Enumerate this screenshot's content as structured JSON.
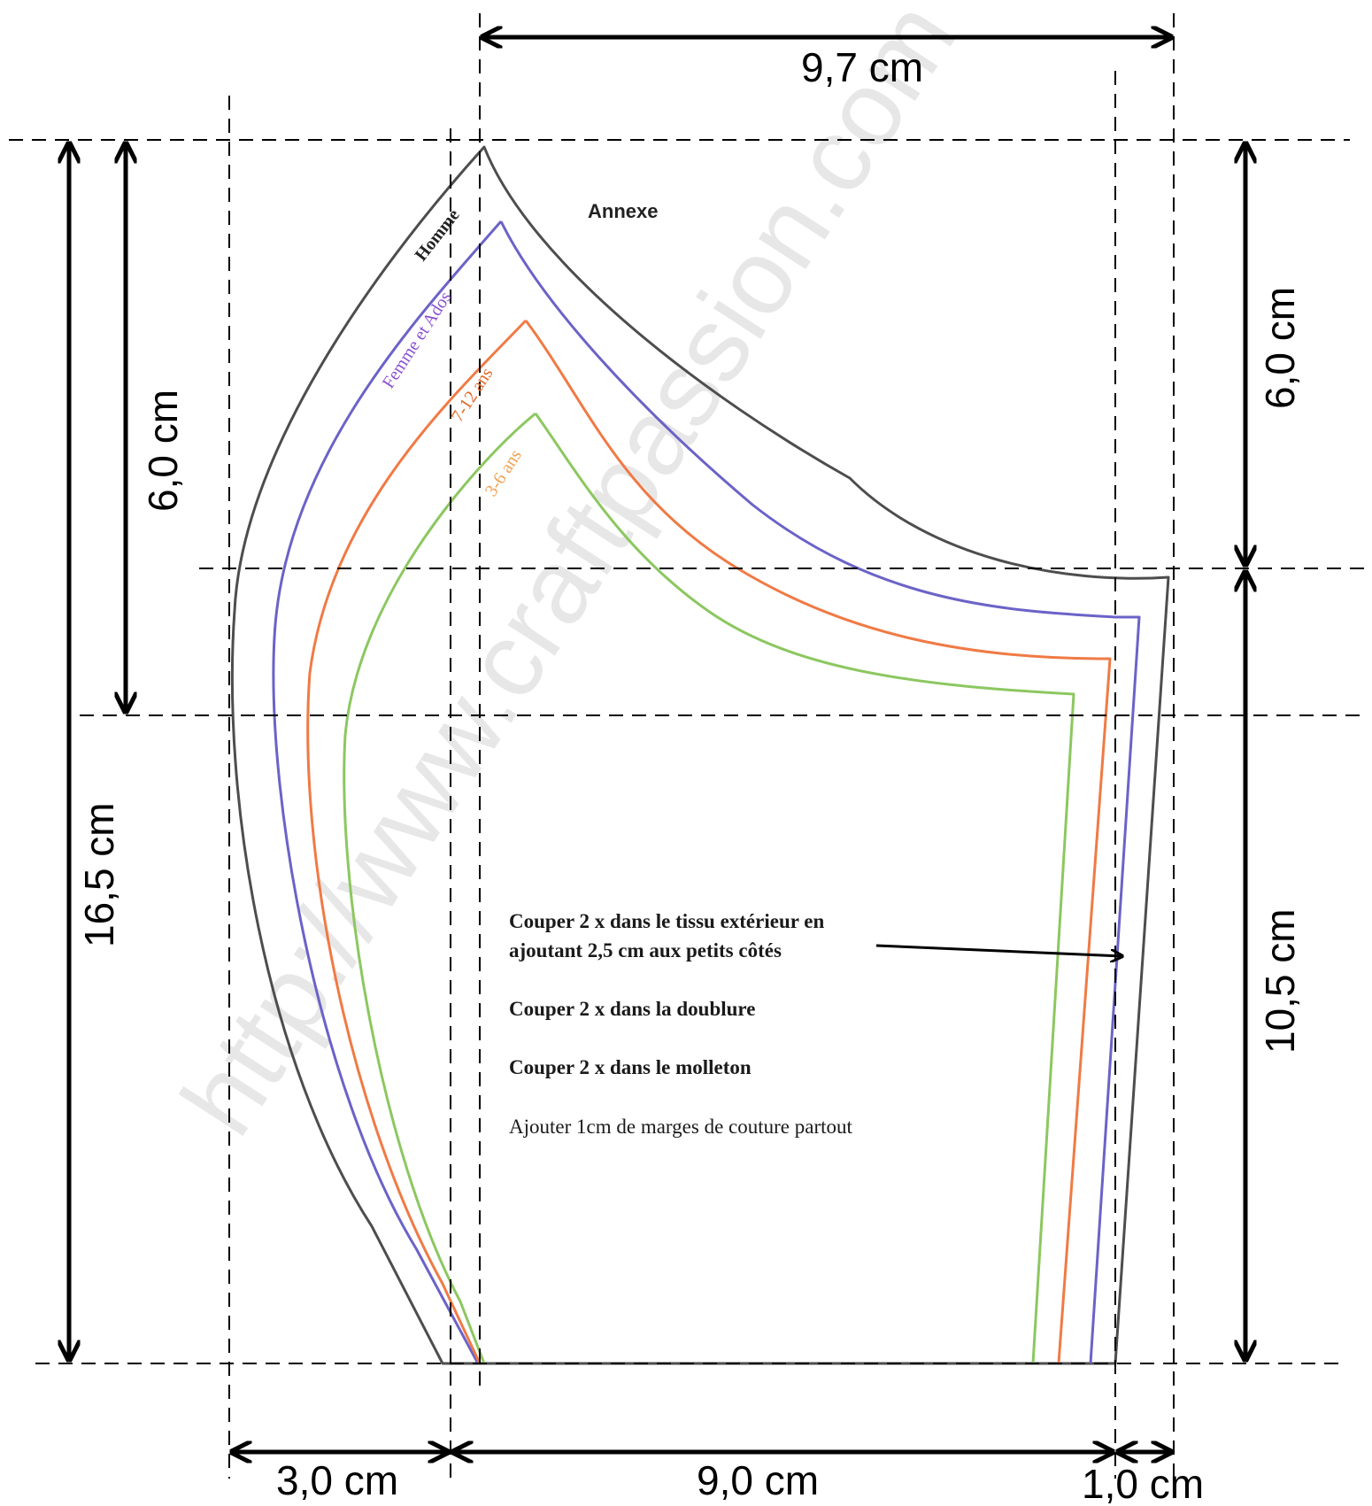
{
  "annexe_label": "Annexe",
  "size_labels": {
    "homme": "Homme",
    "femme": "Femme et Ados",
    "age_7_12": "7-12 ans",
    "age_3_6": "3-6 ans"
  },
  "colors": {
    "homme": "#4d4d4d",
    "femme": "#6b63c7",
    "age_7_12": "#f07a45",
    "age_3_6": "#8cc760",
    "femme_label": "#8a4fd1",
    "age_7_12_label": "#e06a2a",
    "age_3_6_label": "#f0a050"
  },
  "dimensions": {
    "top_width": "9,7 cm",
    "left_total_height": "16,5 cm",
    "left_upper_height": "6,0 cm",
    "right_upper_height": "6,0 cm",
    "right_lower_height": "10,5 cm",
    "bottom_left": "3,0 cm",
    "bottom_middle": "9,0 cm",
    "bottom_right": "1,0 cm"
  },
  "instructions": {
    "line1a": "Couper 2 x dans le tissu  extérieur en",
    "line1b": "ajoutant 2,5 cm aux petits côtés",
    "line2": "Couper 2 x dans la doublure",
    "line3": "Couper 2 x dans le molleton",
    "line4": "Ajouter 1cm de marges de couture partout"
  },
  "watermark": "http://www.craftpassion.com"
}
